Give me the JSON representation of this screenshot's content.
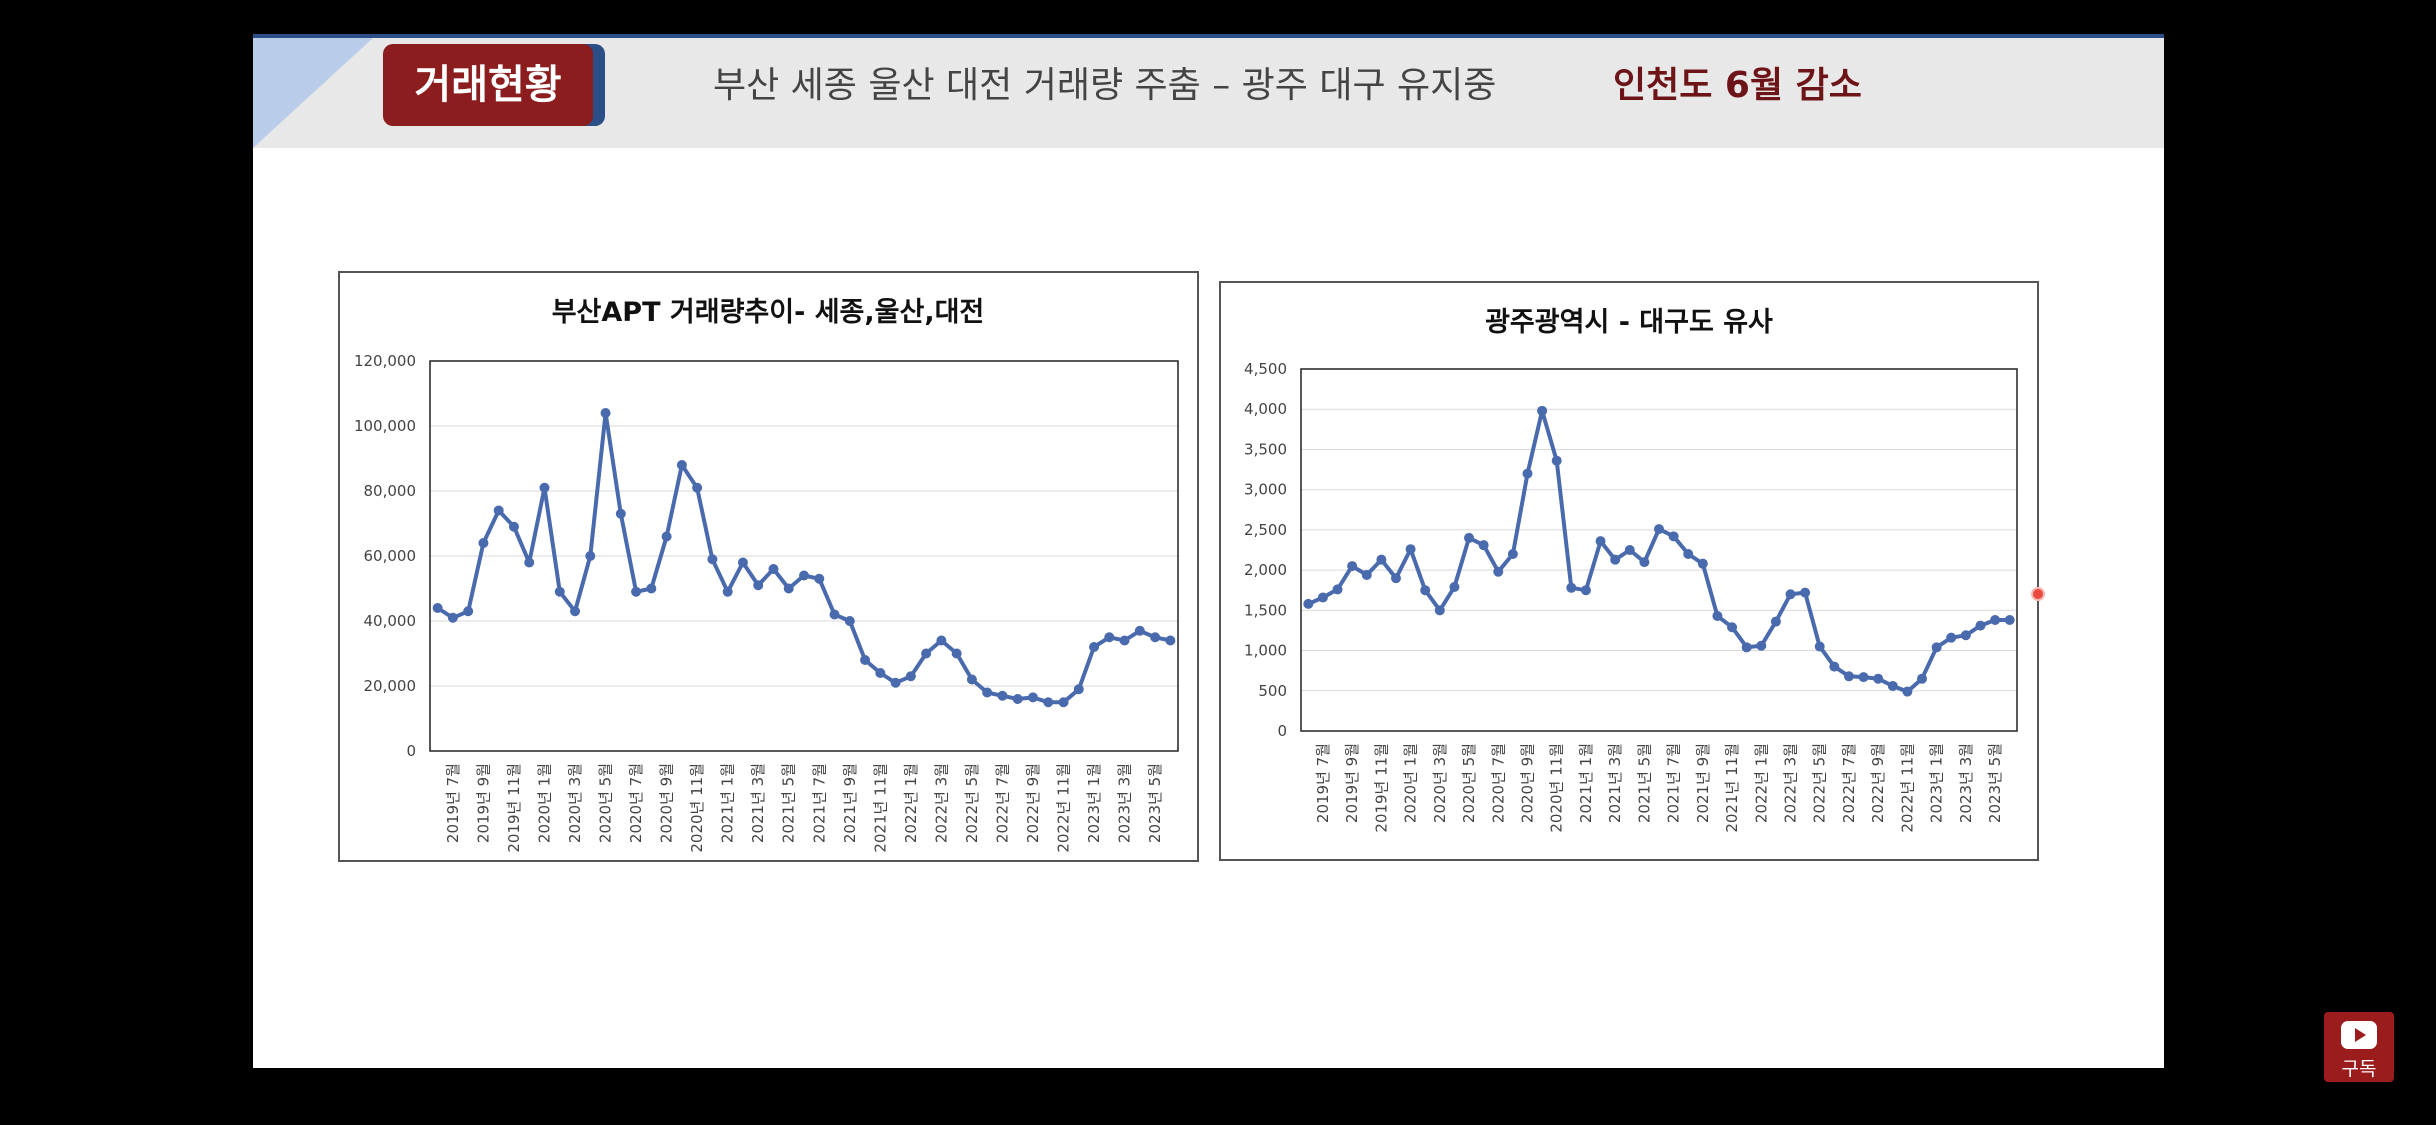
{
  "header": {
    "badge": "거래현황",
    "headline": "부산 세종 울산 대전 거래량 주춤 – 광주 대구 유지중",
    "headline_accent": "인천도 6월 감소"
  },
  "subscribe": {
    "label": "구독",
    "icon": "youtube-play-icon"
  },
  "colors": {
    "series": "#4a6aae",
    "badge": "#8b1d1f",
    "accent_blue": "#2b4e86"
  },
  "chart_data": [
    {
      "type": "line",
      "title": "부산APT 거래량추이- 세종,울산,대전",
      "ylim": [
        0,
        120000
      ],
      "yticks": [
        "0",
        "20,000",
        "40,000",
        "60,000",
        "80,000",
        "100,000",
        "120,000"
      ],
      "xtick_labels": [
        "2019년 7월",
        "2019년 9월",
        "2019년 11월",
        "2020년 1월",
        "2020년 3월",
        "2020년 5월",
        "2020년 7월",
        "2020년 9월",
        "2020년 11월",
        "2021년 1월",
        "2021년 3월",
        "2021년 5월",
        "2021년 7월",
        "2021년 9월",
        "2021년 11월",
        "2022년 1월",
        "2022년 3월",
        "2022년 5월",
        "2022년 7월",
        "2022년 9월",
        "2022년 11월",
        "2023년 1월",
        "2023년 3월",
        "2023년 5월"
      ],
      "x": [
        "2019-06",
        "2019-07",
        "2019-08",
        "2019-09",
        "2019-10",
        "2019-11",
        "2019-12",
        "2020-01",
        "2020-02",
        "2020-03",
        "2020-04",
        "2020-05",
        "2020-06",
        "2020-07",
        "2020-08",
        "2020-09",
        "2020-10",
        "2020-11",
        "2020-12",
        "2021-01",
        "2021-02",
        "2021-03",
        "2021-04",
        "2021-05",
        "2021-06",
        "2021-07",
        "2021-08",
        "2021-09",
        "2021-10",
        "2021-11",
        "2021-12",
        "2022-01",
        "2022-02",
        "2022-03",
        "2022-04",
        "2022-05",
        "2022-06",
        "2022-07",
        "2022-08",
        "2022-09",
        "2022-10",
        "2022-11",
        "2022-12",
        "2023-01",
        "2023-02",
        "2023-03",
        "2023-04",
        "2023-05",
        "2023-06"
      ],
      "values": [
        44000,
        41000,
        43000,
        64000,
        74000,
        69000,
        58000,
        81000,
        49000,
        43000,
        60000,
        104000,
        73000,
        49000,
        50000,
        66000,
        88000,
        81000,
        59000,
        49000,
        58000,
        51000,
        56000,
        50000,
        54000,
        53000,
        42000,
        40000,
        28000,
        24000,
        21000,
        23000,
        30000,
        34000,
        30000,
        22000,
        18000,
        17000,
        16000,
        16500,
        15000,
        15000,
        19000,
        32000,
        35000,
        34000,
        37000,
        35000,
        34000
      ],
      "grid": true
    },
    {
      "type": "line",
      "title": "광주광역시  - 대구도 유사",
      "ylim": [
        0,
        4500
      ],
      "yticks": [
        "0",
        "500",
        "1,000",
        "1,500",
        "2,000",
        "2,500",
        "3,000",
        "3,500",
        "4,000",
        "4,500"
      ],
      "xtick_labels": [
        "2019년 7월",
        "2019년 9월",
        "2019년 11월",
        "2020년 1월",
        "2020년 3월",
        "2020년 5월",
        "2020년 7월",
        "2020년 9월",
        "2020년 11월",
        "2021년 1월",
        "2021년 3월",
        "2021년 5월",
        "2021년 7월",
        "2021년 9월",
        "2021년 11월",
        "2022년 1월",
        "2022년 3월",
        "2022년 5월",
        "2022년 7월",
        "2022년 9월",
        "2022년 11월",
        "2023년 1월",
        "2023년 3월",
        "2023년 5월"
      ],
      "x": [
        "2019-06",
        "2019-07",
        "2019-08",
        "2019-09",
        "2019-10",
        "2019-11",
        "2019-12",
        "2020-01",
        "2020-02",
        "2020-03",
        "2020-04",
        "2020-05",
        "2020-06",
        "2020-07",
        "2020-08",
        "2020-09",
        "2020-10",
        "2020-11",
        "2020-12",
        "2021-01",
        "2021-02",
        "2021-03",
        "2021-04",
        "2021-05",
        "2021-06",
        "2021-07",
        "2021-08",
        "2021-09",
        "2021-10",
        "2021-11",
        "2021-12",
        "2022-01",
        "2022-02",
        "2022-03",
        "2022-04",
        "2022-05",
        "2022-06",
        "2022-07",
        "2022-08",
        "2022-09",
        "2022-10",
        "2022-11",
        "2022-12",
        "2023-01",
        "2023-02",
        "2023-03",
        "2023-04",
        "2023-05",
        "2023-06"
      ],
      "values": [
        1580,
        1660,
        1760,
        2050,
        1940,
        2130,
        1900,
        2260,
        1750,
        1500,
        1790,
        2400,
        2310,
        1980,
        2200,
        3200,
        3980,
        3360,
        1780,
        1750,
        2360,
        2130,
        2250,
        2100,
        2510,
        2420,
        2200,
        2080,
        1430,
        1290,
        1040,
        1060,
        1360,
        1700,
        1720,
        1050,
        800,
        680,
        670,
        650,
        560,
        490,
        650,
        1040,
        1160,
        1190,
        1310,
        1380,
        1380
      ],
      "grid": true
    }
  ]
}
